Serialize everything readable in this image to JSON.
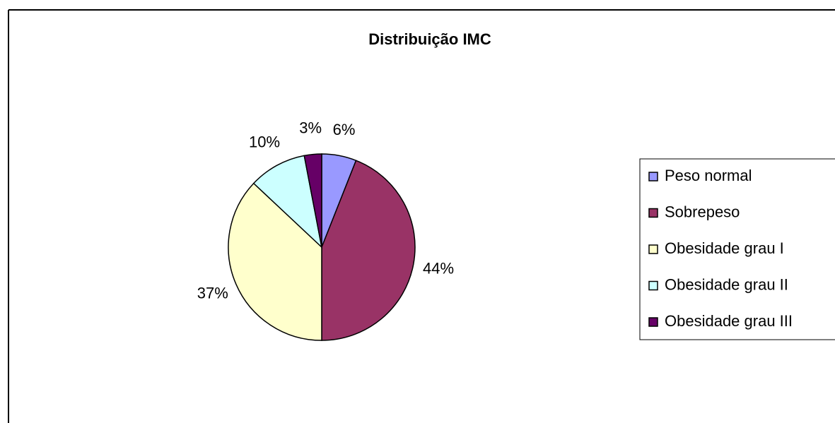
{
  "chart_data": {
    "type": "pie",
    "title": "Distribuição IMC",
    "categories": [
      "Peso normal",
      "Sobrepeso",
      "Obesidade grau I",
      "Obesidade grau II",
      "Obesidade grau III"
    ],
    "values": [
      6,
      44,
      37,
      10,
      3
    ],
    "value_labels": [
      "6%",
      "44%",
      "37%",
      "10%",
      "3%"
    ],
    "colors": [
      "#9999ff",
      "#993366",
      "#ffffcc",
      "#ccffff",
      "#660066"
    ],
    "legend": "right"
  }
}
